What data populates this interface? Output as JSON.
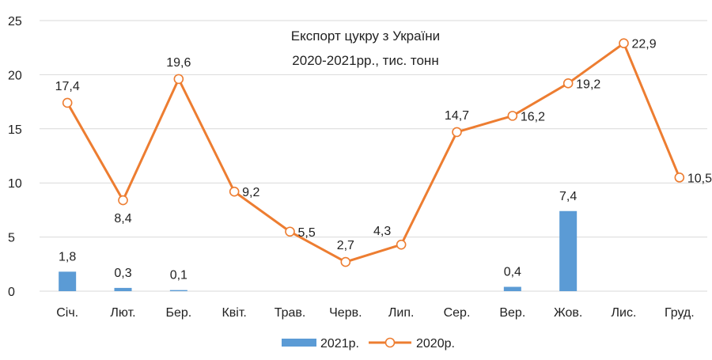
{
  "chart_data": {
    "type": "bar",
    "title_lines": [
      "Експорт цукру з України",
      "2020-2021рр., тис. тонн"
    ],
    "categories": [
      "Січ.",
      "Лют.",
      "Бер.",
      "Квіт.",
      "Трав.",
      "Черв.",
      "Лип.",
      "Сер.",
      "Вер.",
      "Жов.",
      "Лис.",
      "Груд."
    ],
    "series": [
      {
        "name": "2021р.",
        "type": "bar",
        "color": "#5b9bd5",
        "values": [
          1.8,
          0.3,
          0.1,
          null,
          null,
          null,
          null,
          null,
          0.4,
          7.4,
          null,
          null
        ],
        "labels": [
          "1,8",
          "0,3",
          "0,1",
          "",
          "",
          "",
          "",
          "",
          "0,4",
          "7,4",
          "",
          ""
        ]
      },
      {
        "name": "2020р.",
        "type": "line",
        "color": "#ed7d31",
        "values": [
          17.4,
          8.4,
          19.6,
          9.2,
          5.5,
          2.7,
          4.3,
          14.7,
          16.2,
          19.2,
          22.9,
          10.5
        ],
        "labels": [
          "17,4",
          "8,4",
          "19,6",
          "9,2",
          "5,5",
          "2,7",
          "4,3",
          "14,7",
          "16,2",
          "19,2",
          "22,9",
          "10,5"
        ]
      }
    ],
    "ylim": [
      0,
      25
    ],
    "yticks": [
      0,
      5,
      10,
      15,
      20,
      25
    ],
    "grid": true,
    "legend_position": "bottom"
  }
}
